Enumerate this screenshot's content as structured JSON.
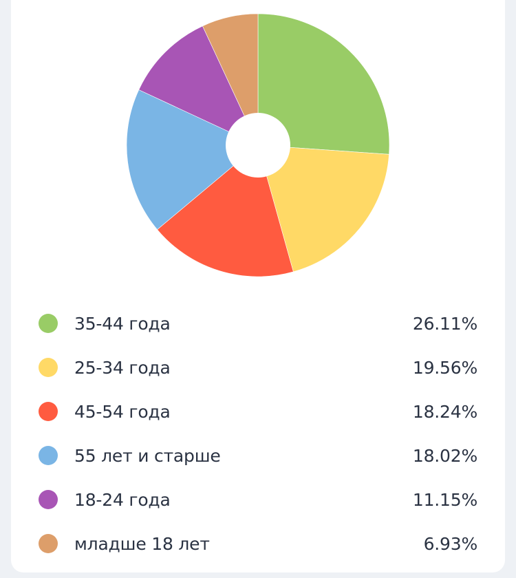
{
  "chart_data": {
    "type": "pie",
    "variant": "donut",
    "title": "",
    "categories": [
      "35-44 года",
      "25-34 года",
      "45-54 года",
      "55 лет и старше",
      "18-24 года",
      "младше 18 лет"
    ],
    "values": [
      26.11,
      19.56,
      18.24,
      18.02,
      11.15,
      6.93
    ],
    "colors": [
      "#99cc66",
      "#ffd966",
      "#ff5b40",
      "#7ab5e5",
      "#a855b5",
      "#dd9e6a"
    ],
    "legend_position": "bottom",
    "unit": "%"
  },
  "legend": {
    "items": [
      {
        "label": "35-44 года",
        "value": "26.11%",
        "color": "#99cc66"
      },
      {
        "label": "25-34 года",
        "value": "19.56%",
        "color": "#ffd966"
      },
      {
        "label": "45-54 года",
        "value": "18.24%",
        "color": "#ff5b40"
      },
      {
        "label": "55 лет и старше",
        "value": "18.02%",
        "color": "#7ab5e5"
      },
      {
        "label": "18-24 года",
        "value": "11.15%",
        "color": "#a855b5"
      },
      {
        "label": "младше 18 лет",
        "value": "6.93%",
        "color": "#dd9e6a"
      }
    ]
  }
}
